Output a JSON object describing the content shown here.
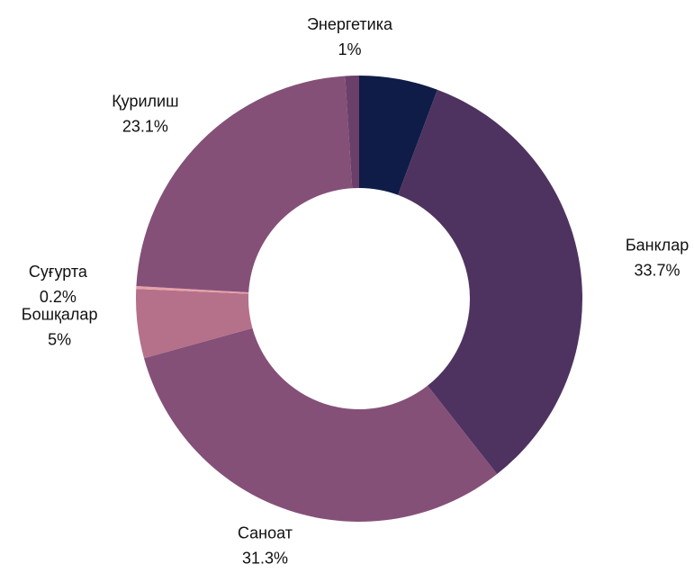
{
  "chart_data": {
    "type": "donut",
    "categories": [
      null,
      "Банклар",
      "Саноат",
      "Бошқалар",
      "Суғурта",
      "Қурилиш",
      "Энергетика"
    ],
    "values": [
      5.7,
      33.7,
      31.3,
      5,
      0.2,
      23.1,
      1
    ],
    "value_labels": [
      null,
      "33.7%",
      "31.3%",
      "5%",
      "0.2%",
      "23.1%",
      "1%"
    ],
    "colors": [
      "#0f1c48",
      "#4e3360",
      "#845078",
      "#b5708a",
      "#e8a0a8",
      "#845078",
      "#6a3f6a"
    ]
  }
}
